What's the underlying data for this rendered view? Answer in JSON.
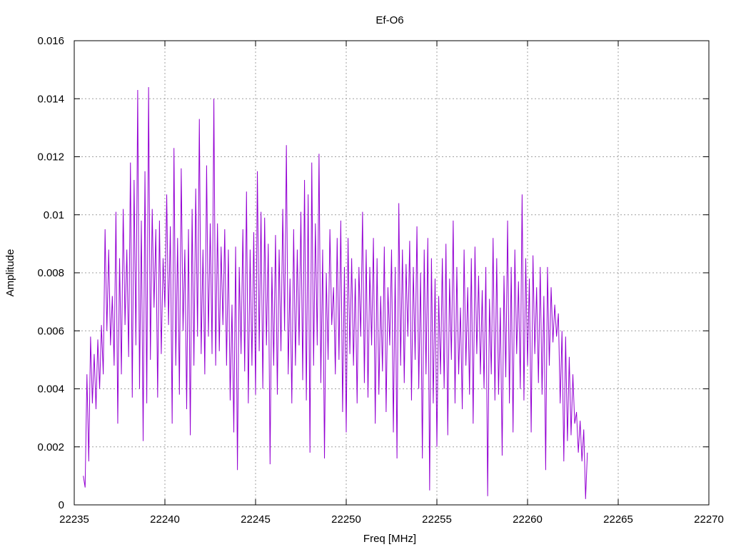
{
  "chart_data": {
    "type": "line",
    "title": "Ef-O6",
    "xlabel": "Freq [MHz]",
    "ylabel": "Amplitude",
    "xlim": [
      22235,
      22270
    ],
    "ylim": [
      0,
      0.016
    ],
    "xticks": [
      "22235",
      "22240",
      "22245",
      "22250",
      "22255",
      "22260",
      "22265",
      "22270"
    ],
    "yticks": [
      "0",
      "0.002",
      "0.004",
      "0.006",
      "0.008",
      "0.01",
      "0.012",
      "0.014",
      "0.016"
    ],
    "grid": true,
    "legend": "none",
    "series": [
      {
        "color": "#9400d3",
        "x_start": 22235.5,
        "x_step": 0.1,
        "values": [
          0.001,
          0.0006,
          0.0045,
          0.0015,
          0.0058,
          0.0035,
          0.0052,
          0.0033,
          0.0057,
          0.004,
          0.0062,
          0.0045,
          0.0095,
          0.006,
          0.0088,
          0.0055,
          0.0072,
          0.0048,
          0.0101,
          0.0028,
          0.0085,
          0.0045,
          0.0102,
          0.0062,
          0.0088,
          0.0051,
          0.0118,
          0.0037,
          0.0112,
          0.0055,
          0.0143,
          0.004,
          0.0098,
          0.0022,
          0.0115,
          0.0035,
          0.0144,
          0.005,
          0.0102,
          0.0068,
          0.0095,
          0.0037,
          0.0098,
          0.0052,
          0.0085,
          0.0068,
          0.0107,
          0.0062,
          0.0096,
          0.0028,
          0.0123,
          0.0048,
          0.0092,
          0.0038,
          0.0116,
          0.006,
          0.0088,
          0.0033,
          0.0095,
          0.0024,
          0.0102,
          0.0048,
          0.0109,
          0.0058,
          0.0133,
          0.0052,
          0.0088,
          0.0045,
          0.0117,
          0.0058,
          0.0097,
          0.0052,
          0.014,
          0.0048,
          0.0097,
          0.0053,
          0.0089,
          0.0062,
          0.0095,
          0.0048,
          0.0088,
          0.0036,
          0.0069,
          0.0025,
          0.0089,
          0.0012,
          0.0082,
          0.0052,
          0.0095,
          0.0046,
          0.0108,
          0.0035,
          0.0088,
          0.0048,
          0.0094,
          0.0038,
          0.0115,
          0.0053,
          0.0101,
          0.004,
          0.0099,
          0.0055,
          0.009,
          0.0014,
          0.0082,
          0.0048,
          0.0093,
          0.0038,
          0.0088,
          0.0053,
          0.0102,
          0.006,
          0.0124,
          0.0045,
          0.0078,
          0.0035,
          0.0095,
          0.0048,
          0.0088,
          0.0055,
          0.0101,
          0.0043,
          0.0112,
          0.0036,
          0.0107,
          0.0018,
          0.0118,
          0.0048,
          0.0097,
          0.0055,
          0.0121,
          0.0042,
          0.0088,
          0.0016,
          0.008,
          0.005,
          0.0095,
          0.0062,
          0.0075,
          0.0045,
          0.0092,
          0.005,
          0.0098,
          0.0032,
          0.0082,
          0.0025,
          0.0092,
          0.0052,
          0.0085,
          0.0048,
          0.0078,
          0.0035,
          0.0082,
          0.0058,
          0.0101,
          0.0042,
          0.0088,
          0.0037,
          0.0082,
          0.0055,
          0.0092,
          0.0028,
          0.0085,
          0.0038,
          0.0072,
          0.0046,
          0.0089,
          0.0032,
          0.0075,
          0.0055,
          0.0088,
          0.0025,
          0.0082,
          0.0016,
          0.0104,
          0.0048,
          0.0088,
          0.0042,
          0.0083,
          0.0058,
          0.0091,
          0.0036,
          0.0082,
          0.005,
          0.0096,
          0.004,
          0.008,
          0.0016,
          0.0088,
          0.0045,
          0.0092,
          0.0005,
          0.0085,
          0.0035,
          0.0078,
          0.002,
          0.0072,
          0.0045,
          0.0085,
          0.004,
          0.009,
          0.0024,
          0.0078,
          0.005,
          0.0098,
          0.0035,
          0.0082,
          0.0045,
          0.0068,
          0.0033,
          0.0088,
          0.0048,
          0.0075,
          0.0038,
          0.0085,
          0.0028,
          0.0089,
          0.0052,
          0.0079,
          0.0045,
          0.0074,
          0.004,
          0.0082,
          0.0003,
          0.0071,
          0.0045,
          0.0092,
          0.0036,
          0.0085,
          0.0038,
          0.0068,
          0.0017,
          0.0079,
          0.0044,
          0.0098,
          0.0035,
          0.0082,
          0.0025,
          0.0088,
          0.0052,
          0.0077,
          0.004,
          0.0107,
          0.0036,
          0.0085,
          0.0048,
          0.0078,
          0.0025,
          0.0086,
          0.0052,
          0.0075,
          0.0042,
          0.0082,
          0.0038,
          0.0072,
          0.0012,
          0.0082,
          0.0048,
          0.0075,
          0.0056,
          0.0069,
          0.0058,
          0.0066,
          0.0035,
          0.006,
          0.0015,
          0.0058,
          0.0022,
          0.0051,
          0.0024,
          0.0045,
          0.0028,
          0.0032,
          0.0018,
          0.0029,
          0.0015,
          0.0026,
          0.0002,
          0.0018
        ]
      }
    ]
  }
}
